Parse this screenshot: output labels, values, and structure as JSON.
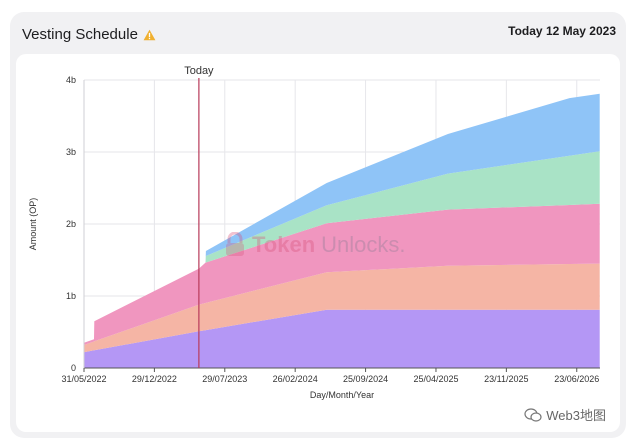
{
  "header": {
    "title": "Vesting Schedule",
    "date_label": "Today 12 May 2023"
  },
  "watermarks": {
    "brand_bold": "Token",
    "brand_light": "Unlocks.",
    "source": "Web3地图"
  },
  "colors": {
    "today_line": "#b83a5a",
    "grid": "#e6e6ea"
  },
  "chart_data": {
    "type": "area",
    "stacked": true,
    "xlabel": "Day/Month/Year",
    "ylabel": "Amount (OP)",
    "today_label": "Today",
    "today": "2023-05-12",
    "xlim": [
      "2022-05-31",
      "2026-09-01"
    ],
    "ylim": [
      0,
      4000000000
    ],
    "x_tick_dates": [
      "2022-05-31",
      "2022-12-29",
      "2023-07-29",
      "2024-02-26",
      "2024-09-25",
      "2025-04-25",
      "2025-11-23",
      "2026-06-23"
    ],
    "x_tick_labels": [
      "31/05/2022",
      "29/12/2022",
      "29/07/2023",
      "26/02/2024",
      "25/09/2024",
      "25/04/2025",
      "23/11/2025",
      "23/06/2026"
    ],
    "y_ticks": [
      0,
      1000000000,
      2000000000,
      3000000000,
      4000000000
    ],
    "y_tick_labels": [
      "0",
      "1b",
      "2b",
      "3b",
      "4b"
    ],
    "grid": true,
    "legend": "none",
    "series": [
      {
        "color": "#b497f5",
        "points": [
          [
            "2022-05-31",
            220000000
          ],
          [
            "2023-05-12",
            510000000
          ],
          [
            "2024-05-31",
            810000000
          ],
          [
            "2026-08-31",
            810000000
          ]
        ]
      },
      {
        "color": "#f5b5a5",
        "points": [
          [
            "2022-05-31",
            100000000
          ],
          [
            "2023-05-12",
            370000000
          ],
          [
            "2024-05-31",
            520000000
          ],
          [
            "2025-05-31",
            610000000
          ],
          [
            "2026-08-31",
            640000000
          ]
        ]
      },
      {
        "color": "#f096bf",
        "points": [
          [
            "2022-05-31",
            30000000
          ],
          [
            "2022-06-30",
            30000000
          ],
          [
            "2022-07-01",
            280000000
          ],
          [
            "2023-05-12",
            500000000
          ],
          [
            "2023-06-01",
            560000000
          ],
          [
            "2024-05-31",
            680000000
          ],
          [
            "2025-05-31",
            780000000
          ],
          [
            "2026-08-31",
            830000000
          ]
        ]
      },
      {
        "color": "#a9e3c6",
        "points": [
          [
            "2023-06-01",
            0
          ],
          [
            "2023-06-02",
            90000000
          ],
          [
            "2024-05-31",
            250000000
          ],
          [
            "2025-05-31",
            500000000
          ],
          [
            "2026-08-31",
            730000000
          ]
        ]
      },
      {
        "color": "#8fc4f7",
        "points": [
          [
            "2023-06-01",
            0
          ],
          [
            "2023-06-02",
            70000000
          ],
          [
            "2024-05-31",
            310000000
          ],
          [
            "2025-05-31",
            550000000
          ],
          [
            "2026-06-01",
            800000000
          ],
          [
            "2026-08-31",
            800000000
          ]
        ]
      }
    ]
  }
}
